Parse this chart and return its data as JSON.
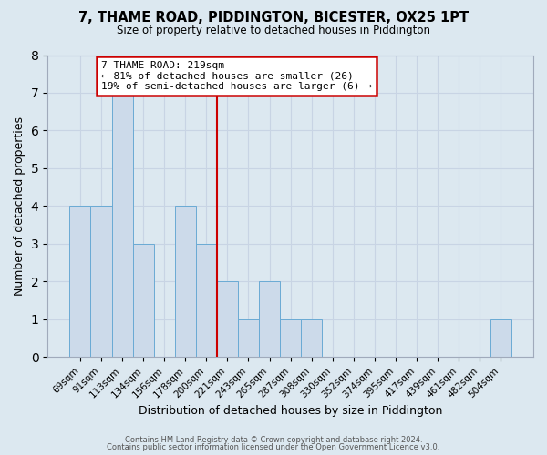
{
  "title": "7, THAME ROAD, PIDDINGTON, BICESTER, OX25 1PT",
  "subtitle": "Size of property relative to detached houses in Piddington",
  "xlabel": "Distribution of detached houses by size in Piddington",
  "ylabel": "Number of detached properties",
  "bar_labels": [
    "69sqm",
    "91sqm",
    "113sqm",
    "134sqm",
    "156sqm",
    "178sqm",
    "200sqm",
    "221sqm",
    "243sqm",
    "265sqm",
    "287sqm",
    "308sqm",
    "330sqm",
    "352sqm",
    "374sqm",
    "395sqm",
    "417sqm",
    "439sqm",
    "461sqm",
    "482sqm",
    "504sqm"
  ],
  "bar_values": [
    4,
    4,
    7,
    3,
    0,
    4,
    3,
    2,
    1,
    2,
    1,
    1,
    0,
    0,
    0,
    0,
    0,
    0,
    0,
    0,
    1
  ],
  "bar_color": "#ccdaea",
  "bar_edge_color": "#6aaad4",
  "vline_x": 6.5,
  "vline_color": "#cc0000",
  "ylim": [
    0,
    8
  ],
  "yticks": [
    0,
    1,
    2,
    3,
    4,
    5,
    6,
    7,
    8
  ],
  "annotation_title": "7 THAME ROAD: 219sqm",
  "annotation_line1": "← 81% of detached houses are smaller (26)",
  "annotation_line2": "19% of semi-detached houses are larger (6) →",
  "annotation_box_color": "#ffffff",
  "annotation_box_edge": "#cc0000",
  "grid_color": "#c8d4e4",
  "background_color": "#dce8f0",
  "footer1": "Contains HM Land Registry data © Crown copyright and database right 2024.",
  "footer2": "Contains public sector information licensed under the Open Government Licence v3.0."
}
